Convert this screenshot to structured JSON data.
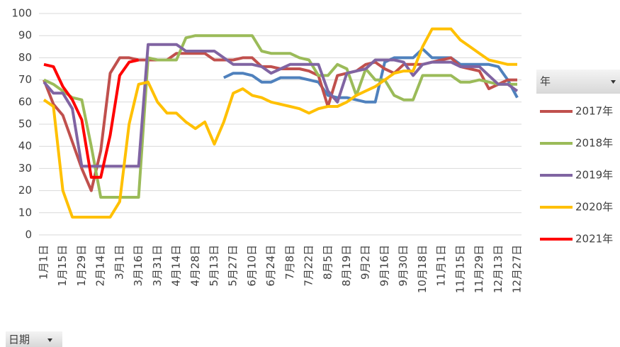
{
  "chart_data": {
    "type": "line",
    "legend_title": "年",
    "filter_label": "日期",
    "categories": [
      "1月1日",
      null,
      "1月15日",
      null,
      "1月29日",
      null,
      "2月14日",
      null,
      "3月1日",
      null,
      "3月16日",
      null,
      "3月31日",
      null,
      "4月14日",
      null,
      "4月28日",
      null,
      "5月13日",
      null,
      "5月27日",
      null,
      "6月10日",
      null,
      "6月24日",
      null,
      "7月8日",
      null,
      "7月22日",
      null,
      "8月5日",
      null,
      "8月19日",
      null,
      "9月2日",
      null,
      "9月16日",
      null,
      "9月30日",
      null,
      "10月18日",
      null,
      "11月1日",
      null,
      "11月15日",
      null,
      "11月29日",
      null,
      "12月13日",
      null,
      "12月27日"
    ],
    "series": [
      {
        "color": "#4f81bd",
        "values": [
          null,
          null,
          null,
          null,
          null,
          null,
          null,
          null,
          null,
          null,
          null,
          null,
          null,
          null,
          null,
          null,
          null,
          null,
          null,
          71,
          73,
          73,
          72,
          69,
          69,
          71,
          71,
          71,
          70,
          69,
          63,
          62,
          62,
          61,
          60,
          60,
          78,
          80,
          80,
          80,
          84,
          80,
          80,
          80,
          77,
          77,
          77,
          77,
          76,
          70,
          62
        ]
      },
      {
        "name": "2017年",
        "color": "#c0504d",
        "values": [
          70,
          59,
          54,
          42,
          30,
          20,
          38,
          73,
          80,
          80,
          79,
          79,
          79,
          79,
          82,
          82,
          82,
          82,
          79,
          79,
          79,
          80,
          80,
          76,
          76,
          75,
          75,
          75,
          74,
          72,
          58,
          72,
          73,
          74,
          77,
          78,
          75,
          73,
          77,
          77,
          77,
          78,
          79,
          80,
          76,
          75,
          74,
          66,
          68,
          70,
          70
        ]
      },
      {
        "name": "2018年",
        "color": "#9bbb59",
        "values": [
          70,
          68,
          65,
          62,
          61,
          40,
          17,
          17,
          17,
          17,
          17,
          80,
          79,
          79,
          79,
          89,
          90,
          90,
          90,
          90,
          90,
          90,
          90,
          83,
          82,
          82,
          82,
          80,
          79,
          72,
          72,
          77,
          75,
          63,
          75,
          70,
          70,
          63,
          61,
          61,
          72,
          72,
          72,
          72,
          69,
          69,
          70,
          69,
          68,
          68,
          68
        ]
      },
      {
        "name": "2019年",
        "color": "#8064a2",
        "values": [
          69,
          64,
          64,
          57,
          31,
          31,
          31,
          31,
          31,
          31,
          31,
          86,
          86,
          86,
          86,
          83,
          83,
          83,
          83,
          80,
          77,
          77,
          77,
          76,
          73,
          75,
          77,
          77,
          77,
          77,
          65,
          60,
          73,
          74,
          75,
          79,
          79,
          79,
          78,
          72,
          77,
          78,
          78,
          78,
          76,
          76,
          76,
          72,
          68,
          68,
          65
        ]
      },
      {
        "name": "2020年",
        "color": "#ffc000",
        "values": [
          61,
          58,
          20,
          8,
          8,
          8,
          8,
          8,
          15,
          50,
          68,
          69,
          60,
          55,
          55,
          51,
          48,
          51,
          41,
          51,
          64,
          66,
          63,
          62,
          60,
          59,
          58,
          57,
          55,
          57,
          58,
          58,
          60,
          63,
          65,
          67,
          70,
          73,
          74,
          74,
          85,
          93,
          93,
          93,
          88,
          85,
          82,
          79,
          78,
          77,
          77
        ]
      },
      {
        "name": "2021年",
        "color": "#ff0000",
        "values": [
          77,
          76,
          67,
          61,
          52,
          26,
          26,
          45,
          72,
          78,
          79,
          null,
          null,
          null,
          null,
          null,
          null,
          null,
          null,
          null,
          null,
          null,
          null,
          null,
          null,
          null,
          null,
          null,
          null,
          null,
          null,
          null,
          null,
          null,
          null,
          null,
          null,
          null,
          null,
          null,
          null,
          null,
          null,
          null,
          null,
          null,
          null,
          null,
          null,
          null,
          null
        ]
      }
    ],
    "ylim": [
      0,
      100
    ],
    "yticks": [
      0,
      10,
      20,
      30,
      40,
      50,
      60,
      70,
      80,
      90,
      100
    ],
    "grid": true
  }
}
